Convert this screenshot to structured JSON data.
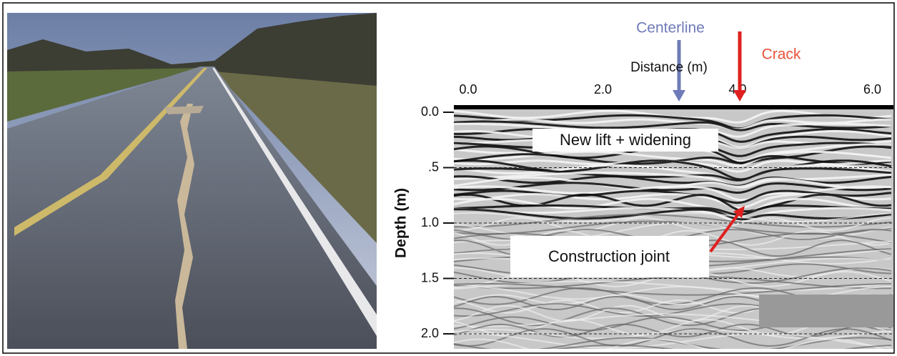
{
  "radargram": {
    "markers": {
      "centerline": "Centerline",
      "crack": "Crack"
    },
    "x_label": "Distance (m)",
    "y_label": "Depth (m)",
    "xticks": [
      "0.0",
      "2.0",
      "4.0",
      "6.0"
    ],
    "yticks": [
      "0.0",
      ".5",
      "1.0",
      "1.5",
      "2.0"
    ],
    "annotations": {
      "layer": "New lift + widening",
      "joint": "Construction joint"
    }
  }
}
